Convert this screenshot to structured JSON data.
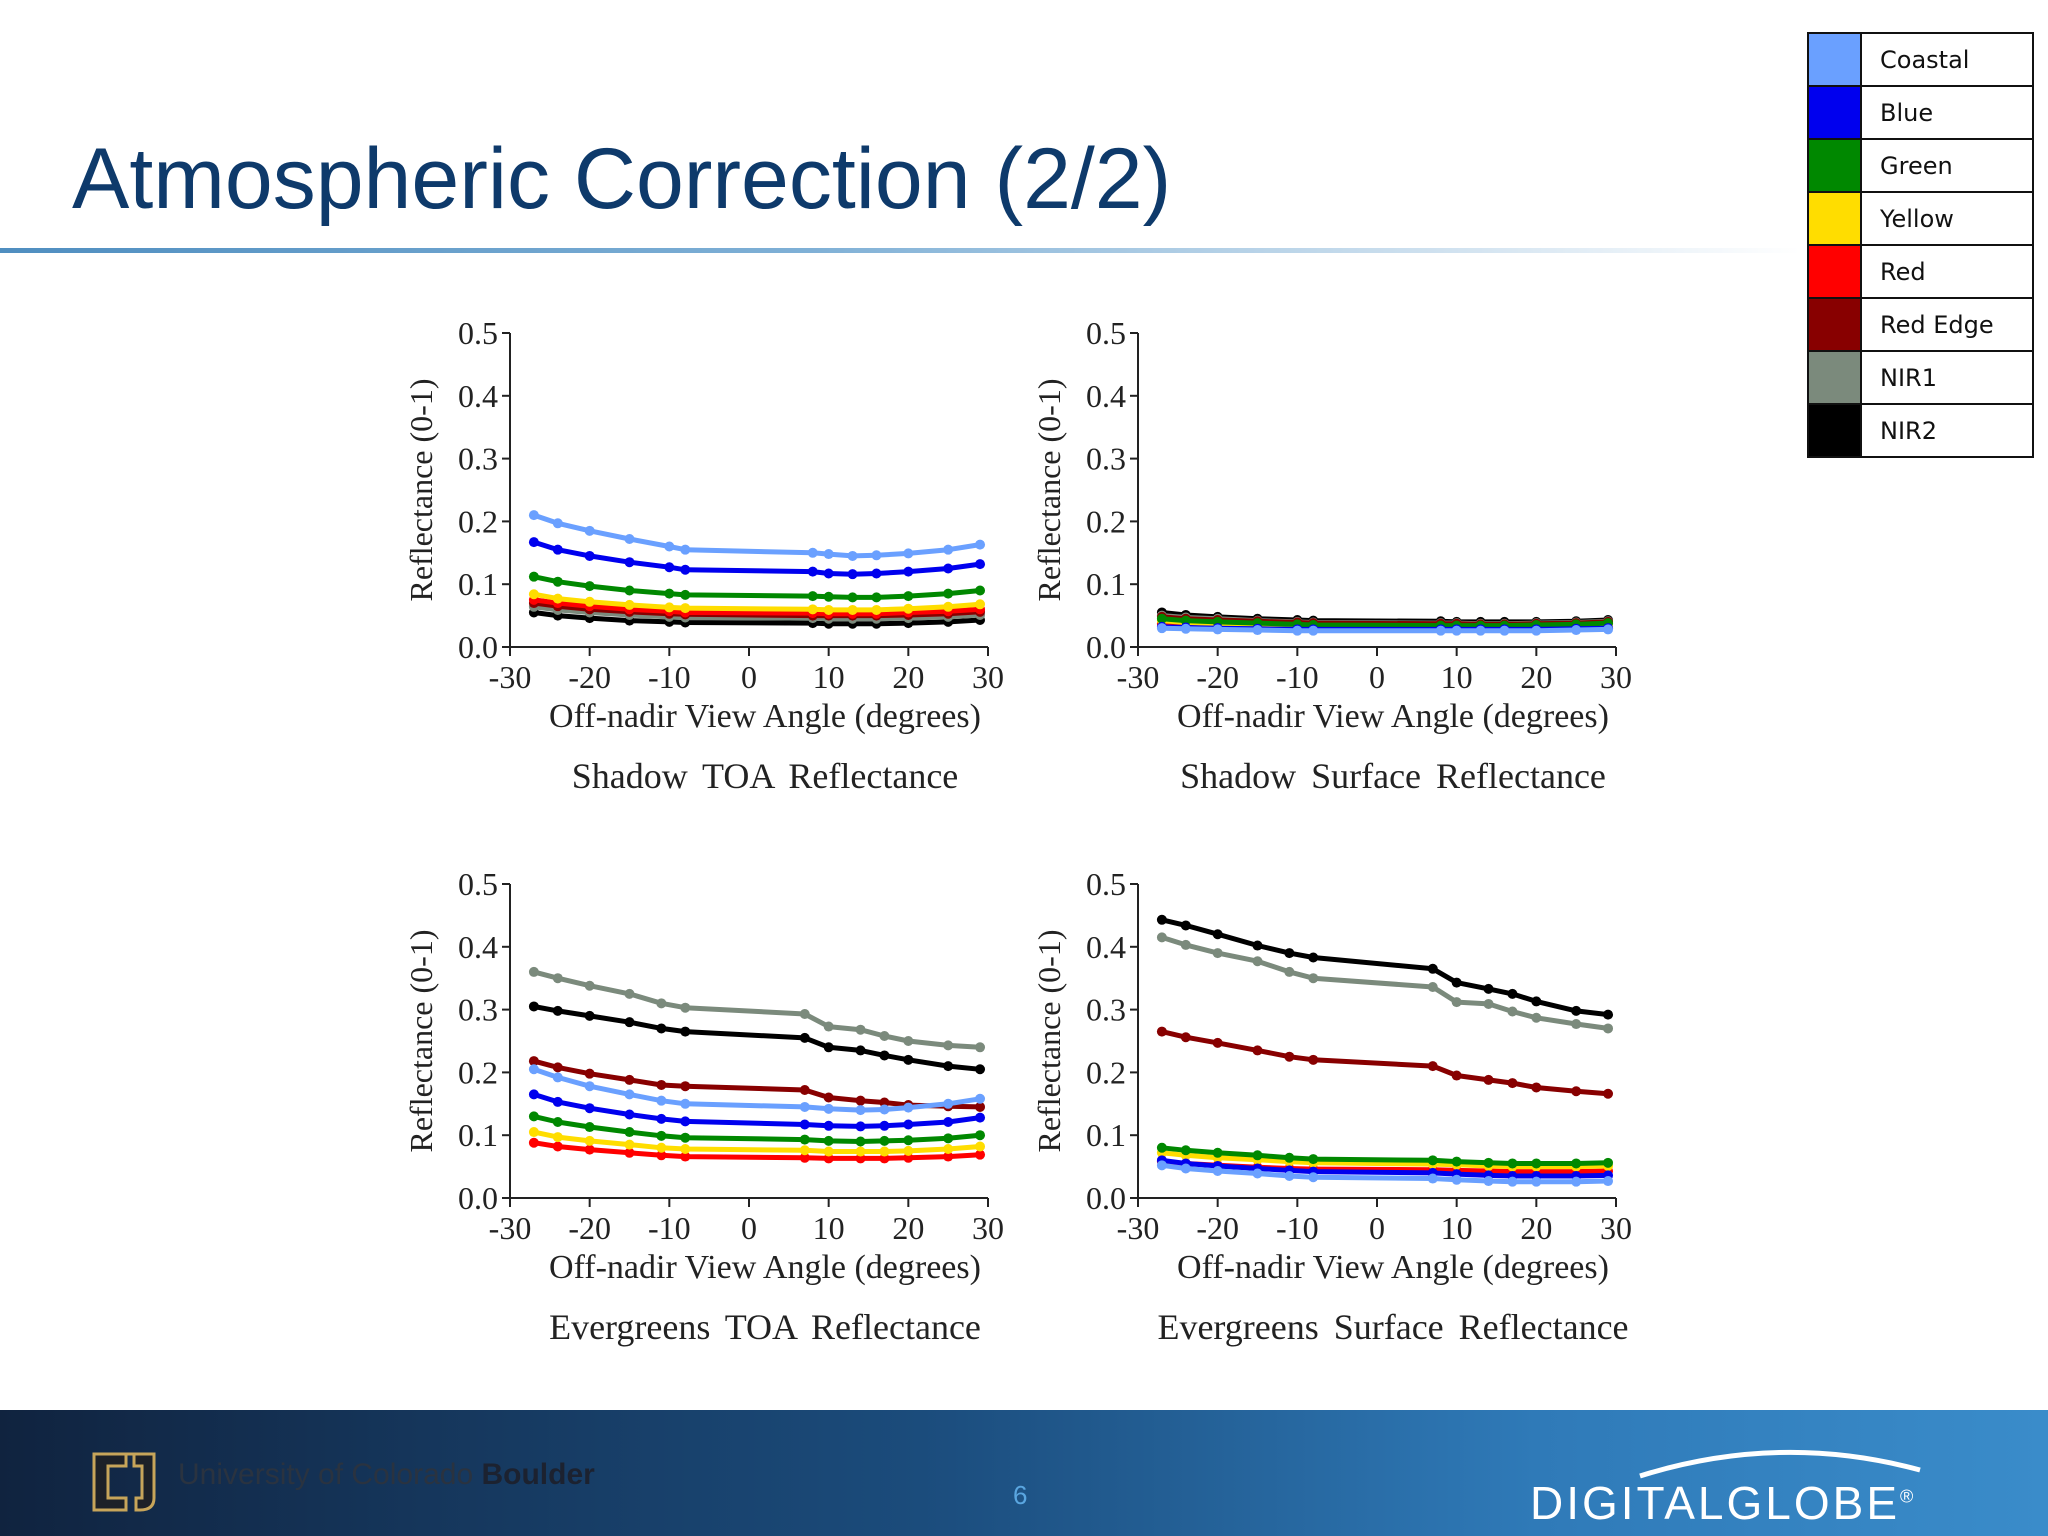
{
  "title": "Atmospheric Correction (2/2)",
  "legend": [
    {
      "name": "Coastal",
      "color": "#6aa0ff"
    },
    {
      "name": "Blue",
      "color": "#0000ee"
    },
    {
      "name": "Green",
      "color": "#008800"
    },
    {
      "name": "Yellow",
      "color": "#ffdd00"
    },
    {
      "name": "Red",
      "color": "#ff0000"
    },
    {
      "name": "Red Edge",
      "color": "#880000"
    },
    {
      "name": "NIR1",
      "color": "#7b8a7c"
    },
    {
      "name": "NIR2",
      "color": "#000000"
    }
  ],
  "chart_data": [
    {
      "type": "line",
      "title": "Shadow TOA Reflectance",
      "xlabel": "Off-nadir View Angle (degrees)",
      "ylabel": "Reflectance (0-1)",
      "xlim": [
        -30,
        30
      ],
      "ylim": [
        0,
        0.5
      ],
      "xticks": [
        "-30",
        "-20",
        "-10",
        "0",
        "10",
        "20",
        "30"
      ],
      "yticks": [
        "0.0",
        "0.1",
        "0.2",
        "0.3",
        "0.4",
        "0.5"
      ],
      "x": [
        -27,
        -24,
        -20,
        -15,
        -10,
        -8,
        8,
        10,
        13,
        16,
        20,
        25,
        29
      ],
      "series": [
        {
          "name": "Coastal",
          "values": [
            0.21,
            0.197,
            0.185,
            0.172,
            0.16,
            0.155,
            0.15,
            0.148,
            0.145,
            0.146,
            0.149,
            0.155,
            0.163
          ]
        },
        {
          "name": "Blue",
          "values": [
            0.167,
            0.155,
            0.145,
            0.135,
            0.127,
            0.123,
            0.12,
            0.117,
            0.116,
            0.117,
            0.12,
            0.125,
            0.132
          ]
        },
        {
          "name": "Green",
          "values": [
            0.112,
            0.104,
            0.097,
            0.09,
            0.085,
            0.083,
            0.081,
            0.08,
            0.079,
            0.079,
            0.081,
            0.085,
            0.09
          ]
        },
        {
          "name": "Yellow",
          "values": [
            0.084,
            0.077,
            0.072,
            0.067,
            0.063,
            0.062,
            0.06,
            0.059,
            0.059,
            0.059,
            0.061,
            0.064,
            0.068
          ]
        },
        {
          "name": "Red",
          "values": [
            0.075,
            0.07,
            0.065,
            0.06,
            0.057,
            0.055,
            0.054,
            0.053,
            0.053,
            0.053,
            0.055,
            0.057,
            0.06
          ]
        },
        {
          "name": "Red Edge",
          "values": [
            0.07,
            0.065,
            0.06,
            0.056,
            0.053,
            0.052,
            0.05,
            0.05,
            0.05,
            0.05,
            0.051,
            0.053,
            0.056
          ]
        },
        {
          "name": "NIR1",
          "values": [
            0.064,
            0.059,
            0.055,
            0.051,
            0.048,
            0.047,
            0.046,
            0.045,
            0.045,
            0.045,
            0.046,
            0.048,
            0.051
          ]
        },
        {
          "name": "NIR2",
          "values": [
            0.055,
            0.05,
            0.046,
            0.042,
            0.04,
            0.039,
            0.038,
            0.037,
            0.037,
            0.037,
            0.038,
            0.04,
            0.043
          ]
        }
      ]
    },
    {
      "type": "line",
      "title": "Shadow Surface Reflectance",
      "xlabel": "Off-nadir View Angle (degrees)",
      "ylabel": "Reflectance (0-1)",
      "xlim": [
        -30,
        30
      ],
      "ylim": [
        0,
        0.5
      ],
      "xticks": [
        "-30",
        "-20",
        "-10",
        "0",
        "10",
        "20",
        "30"
      ],
      "yticks": [
        "0.0",
        "0.1",
        "0.2",
        "0.3",
        "0.4",
        "0.5"
      ],
      "x": [
        -27,
        -24,
        -20,
        -15,
        -10,
        -8,
        8,
        10,
        13,
        16,
        20,
        25,
        29
      ],
      "series": [
        {
          "name": "Coastal",
          "values": [
            0.03,
            0.029,
            0.028,
            0.027,
            0.026,
            0.026,
            0.026,
            0.026,
            0.026,
            0.026,
            0.026,
            0.027,
            0.028
          ]
        },
        {
          "name": "Blue",
          "values": [
            0.032,
            0.031,
            0.03,
            0.029,
            0.028,
            0.028,
            0.028,
            0.028,
            0.028,
            0.028,
            0.028,
            0.029,
            0.03
          ]
        },
        {
          "name": "Green",
          "values": [
            0.045,
            0.042,
            0.04,
            0.038,
            0.036,
            0.035,
            0.034,
            0.034,
            0.034,
            0.034,
            0.035,
            0.036,
            0.038
          ]
        },
        {
          "name": "Yellow",
          "values": [
            0.042,
            0.039,
            0.037,
            0.035,
            0.033,
            0.033,
            0.032,
            0.032,
            0.032,
            0.032,
            0.033,
            0.034,
            0.036
          ]
        },
        {
          "name": "Red",
          "values": [
            0.037,
            0.034,
            0.032,
            0.03,
            0.029,
            0.028,
            0.028,
            0.028,
            0.027,
            0.027,
            0.028,
            0.029,
            0.03
          ]
        },
        {
          "name": "Red Edge",
          "values": [
            0.048,
            0.045,
            0.043,
            0.041,
            0.039,
            0.038,
            0.037,
            0.037,
            0.036,
            0.036,
            0.037,
            0.038,
            0.04
          ]
        },
        {
          "name": "NIR1",
          "values": [
            0.05,
            0.047,
            0.045,
            0.042,
            0.04,
            0.039,
            0.038,
            0.038,
            0.037,
            0.037,
            0.038,
            0.039,
            0.041
          ]
        },
        {
          "name": "NIR2",
          "values": [
            0.055,
            0.051,
            0.048,
            0.045,
            0.043,
            0.042,
            0.041,
            0.04,
            0.04,
            0.04,
            0.04,
            0.041,
            0.043
          ]
        }
      ]
    },
    {
      "type": "line",
      "title": "Evergreens TOA Reflectance",
      "xlabel": "Off-nadir View Angle (degrees)",
      "ylabel": "Reflectance (0-1)",
      "xlim": [
        -30,
        30
      ],
      "ylim": [
        0,
        0.5
      ],
      "xticks": [
        "-30",
        "-20",
        "-10",
        "0",
        "10",
        "20",
        "30"
      ],
      "yticks": [
        "0.0",
        "0.1",
        "0.2",
        "0.3",
        "0.4",
        "0.5"
      ],
      "x": [
        -27,
        -24,
        -20,
        -15,
        -11,
        -8,
        7,
        10,
        14,
        17,
        20,
        25,
        29
      ],
      "series": [
        {
          "name": "Coastal",
          "values": [
            0.205,
            0.192,
            0.178,
            0.165,
            0.155,
            0.15,
            0.145,
            0.142,
            0.14,
            0.141,
            0.144,
            0.15,
            0.158
          ]
        },
        {
          "name": "Blue",
          "values": [
            0.165,
            0.153,
            0.143,
            0.133,
            0.126,
            0.122,
            0.117,
            0.115,
            0.114,
            0.115,
            0.117,
            0.121,
            0.128
          ]
        },
        {
          "name": "Green",
          "values": [
            0.13,
            0.121,
            0.113,
            0.105,
            0.099,
            0.096,
            0.093,
            0.091,
            0.09,
            0.091,
            0.092,
            0.095,
            0.1
          ]
        },
        {
          "name": "Yellow",
          "values": [
            0.105,
            0.097,
            0.091,
            0.085,
            0.08,
            0.078,
            0.076,
            0.074,
            0.074,
            0.074,
            0.075,
            0.078,
            0.082
          ]
        },
        {
          "name": "Red",
          "values": [
            0.088,
            0.082,
            0.077,
            0.072,
            0.068,
            0.066,
            0.064,
            0.063,
            0.063,
            0.063,
            0.064,
            0.066,
            0.069
          ]
        },
        {
          "name": "Red Edge",
          "values": [
            0.218,
            0.208,
            0.198,
            0.188,
            0.18,
            0.178,
            0.172,
            0.16,
            0.155,
            0.152,
            0.148,
            0.146,
            0.145
          ]
        },
        {
          "name": "NIR1",
          "values": [
            0.36,
            0.35,
            0.338,
            0.325,
            0.31,
            0.303,
            0.293,
            0.273,
            0.268,
            0.258,
            0.25,
            0.243,
            0.24
          ]
        },
        {
          "name": "NIR2",
          "values": [
            0.305,
            0.298,
            0.29,
            0.28,
            0.27,
            0.265,
            0.255,
            0.24,
            0.235,
            0.227,
            0.22,
            0.21,
            0.205
          ]
        }
      ]
    },
    {
      "type": "line",
      "title": "Evergreens Surface Reflectance",
      "xlabel": "Off-nadir View Angle (degrees)",
      "ylabel": "Reflectance (0-1)",
      "xlim": [
        -30,
        30
      ],
      "ylim": [
        0,
        0.5
      ],
      "xticks": [
        "-30",
        "-20",
        "-10",
        "0",
        "10",
        "20",
        "30"
      ],
      "yticks": [
        "0.0",
        "0.1",
        "0.2",
        "0.3",
        "0.4",
        "0.5"
      ],
      "x": [
        -27,
        -24,
        -20,
        -15,
        -11,
        -8,
        7,
        10,
        14,
        17,
        20,
        25,
        29
      ],
      "series": [
        {
          "name": "Coastal",
          "values": [
            0.052,
            0.047,
            0.043,
            0.039,
            0.035,
            0.033,
            0.031,
            0.029,
            0.027,
            0.026,
            0.026,
            0.026,
            0.027
          ]
        },
        {
          "name": "Blue",
          "values": [
            0.06,
            0.055,
            0.051,
            0.047,
            0.044,
            0.042,
            0.04,
            0.038,
            0.036,
            0.035,
            0.035,
            0.035,
            0.036
          ]
        },
        {
          "name": "Green",
          "values": [
            0.08,
            0.076,
            0.072,
            0.068,
            0.064,
            0.062,
            0.06,
            0.058,
            0.056,
            0.055,
            0.055,
            0.055,
            0.056
          ]
        },
        {
          "name": "Yellow",
          "values": [
            0.072,
            0.068,
            0.064,
            0.061,
            0.058,
            0.056,
            0.054,
            0.053,
            0.051,
            0.05,
            0.05,
            0.05,
            0.051
          ]
        },
        {
          "name": "Red",
          "values": [
            0.058,
            0.055,
            0.052,
            0.049,
            0.047,
            0.046,
            0.045,
            0.044,
            0.043,
            0.042,
            0.042,
            0.042,
            0.043
          ]
        },
        {
          "name": "Red Edge",
          "values": [
            0.265,
            0.256,
            0.247,
            0.235,
            0.225,
            0.22,
            0.21,
            0.195,
            0.188,
            0.183,
            0.176,
            0.17,
            0.166
          ]
        },
        {
          "name": "NIR1",
          "values": [
            0.415,
            0.403,
            0.39,
            0.377,
            0.36,
            0.35,
            0.336,
            0.312,
            0.309,
            0.297,
            0.287,
            0.277,
            0.27
          ]
        },
        {
          "name": "NIR2",
          "values": [
            0.443,
            0.434,
            0.42,
            0.402,
            0.39,
            0.383,
            0.365,
            0.343,
            0.333,
            0.325,
            0.313,
            0.298,
            0.292
          ]
        }
      ]
    }
  ],
  "footer": {
    "university": "University of Colorado",
    "university_bold": "Boulder",
    "page_number": "6",
    "company": "DIGITALGLOBE",
    "registered": "®"
  }
}
